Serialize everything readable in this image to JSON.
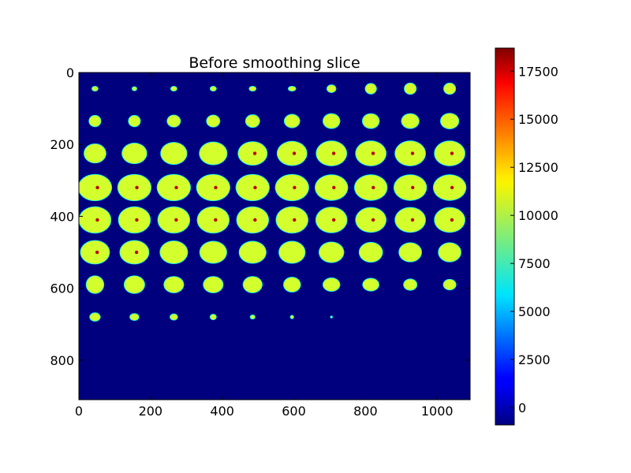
{
  "chart_data": {
    "type": "heatmap",
    "title": "Before smoothing slice",
    "xlabel": "",
    "ylabel": "",
    "xlim": [
      0,
      1092
    ],
    "ylim": [
      910,
      0
    ],
    "x_ticks": [
      0,
      200,
      400,
      600,
      800,
      1000
    ],
    "y_ticks": [
      0,
      200,
      400,
      600,
      800
    ],
    "x_tick_labels": [
      "0",
      "200",
      "400",
      "600",
      "800",
      "1000"
    ],
    "y_tick_labels": [
      "0",
      "200",
      "400",
      "600",
      "800"
    ],
    "colormap": "jet",
    "background_value": 0,
    "colorbar": {
      "min": -900,
      "max": 18700,
      "ticks": [
        0,
        2500,
        5000,
        7500,
        10000,
        12500,
        15000,
        17500
      ],
      "tick_labels": [
        "0",
        "2500",
        "5000",
        "7500",
        "10000",
        "12500",
        "15000",
        "17500"
      ]
    },
    "grid": false,
    "montage": {
      "rows": 8,
      "cols": 10,
      "row_centers": [
        45,
        135,
        225,
        320,
        410,
        500,
        590,
        680
      ],
      "col_centers": [
        45,
        155,
        265,
        375,
        485,
        595,
        705,
        815,
        925,
        1035
      ],
      "tissue_value": 10500,
      "hotspot_value": 17500,
      "slices": [
        [
          [
            8,
            6
          ],
          [
            6,
            5
          ],
          [
            8,
            6
          ],
          [
            8,
            6
          ],
          [
            9,
            6
          ],
          [
            10,
            6
          ],
          [
            12,
            10
          ],
          [
            15,
            14
          ],
          [
            16,
            15
          ],
          [
            16,
            15
          ]
        ],
        [
          [
            16,
            15
          ],
          [
            16,
            15
          ],
          [
            18,
            16
          ],
          [
            18,
            16
          ],
          [
            19,
            17
          ],
          [
            21,
            18
          ],
          [
            23,
            20
          ],
          [
            23,
            20
          ],
          [
            24,
            20
          ],
          [
            25,
            21
          ]
        ],
        [
          [
            30,
            26
          ],
          [
            34,
            28
          ],
          [
            36,
            30
          ],
          [
            38,
            31
          ],
          [
            40,
            32
          ],
          [
            41,
            33
          ],
          [
            42,
            34
          ],
          [
            42,
            34
          ],
          [
            42,
            34
          ],
          [
            42,
            34
          ]
        ],
        [
          [
            46,
            36
          ],
          [
            46,
            36
          ],
          [
            46,
            36
          ],
          [
            46,
            36
          ],
          [
            46,
            36
          ],
          [
            46,
            36
          ],
          [
            45,
            35
          ],
          [
            45,
            35
          ],
          [
            45,
            35
          ],
          [
            45,
            35
          ]
        ],
        [
          [
            44,
            36
          ],
          [
            44,
            36
          ],
          [
            44,
            36
          ],
          [
            44,
            36
          ],
          [
            44,
            36
          ],
          [
            44,
            36
          ],
          [
            43,
            35
          ],
          [
            42,
            34
          ],
          [
            42,
            34
          ],
          [
            42,
            34
          ]
        ],
        [
          [
            40,
            32
          ],
          [
            40,
            32
          ],
          [
            38,
            31
          ],
          [
            37,
            30
          ],
          [
            37,
            30
          ],
          [
            36,
            30
          ],
          [
            34,
            28
          ],
          [
            32,
            27
          ],
          [
            31,
            26
          ],
          [
            31,
            26
          ]
        ],
        [
          [
            24,
            24
          ],
          [
            28,
            24
          ],
          [
            27,
            22
          ],
          [
            27,
            22
          ],
          [
            26,
            22
          ],
          [
            23,
            20
          ],
          [
            23,
            18
          ],
          [
            22,
            17
          ],
          [
            18,
            15
          ],
          [
            17,
            14
          ]
        ],
        [
          [
            14,
            11
          ],
          [
            12,
            9
          ],
          [
            10,
            8
          ],
          [
            8,
            7
          ],
          [
            6,
            5
          ],
          [
            4,
            4
          ],
          [
            2,
            2
          ],
          [
            0,
            0
          ],
          [
            0,
            0
          ],
          [
            0,
            0
          ]
        ]
      ]
    }
  }
}
